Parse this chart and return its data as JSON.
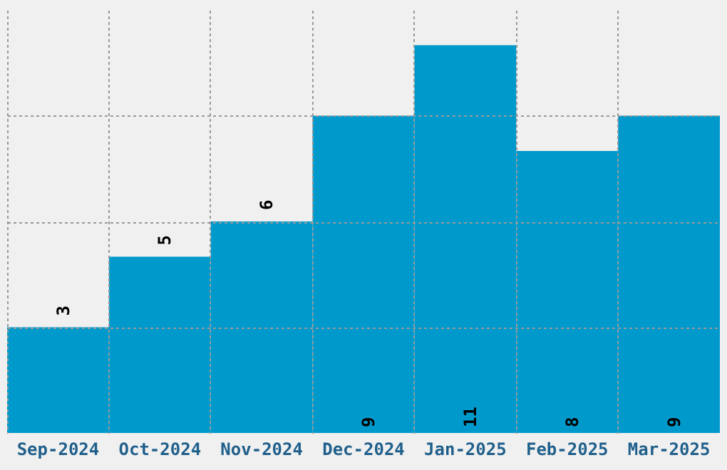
{
  "chart_data": {
    "type": "bar",
    "categories": [
      "Sep-2024",
      "Oct-2024",
      "Nov-2024",
      "Dec-2024",
      "Jan-2025",
      "Feb-2025",
      "Mar-2025"
    ],
    "values": [
      3,
      5,
      6,
      9,
      11,
      8,
      9
    ],
    "color": "#0099cc",
    "ylim": [
      0,
      12
    ],
    "yticks": [
      {
        "value": 3,
        "label": null
      },
      {
        "value": 6,
        "label": null
      },
      {
        "value": 9,
        "label": null
      }
    ],
    "grid": true,
    "data_labels": true,
    "tick_labels": "x"
  }
}
